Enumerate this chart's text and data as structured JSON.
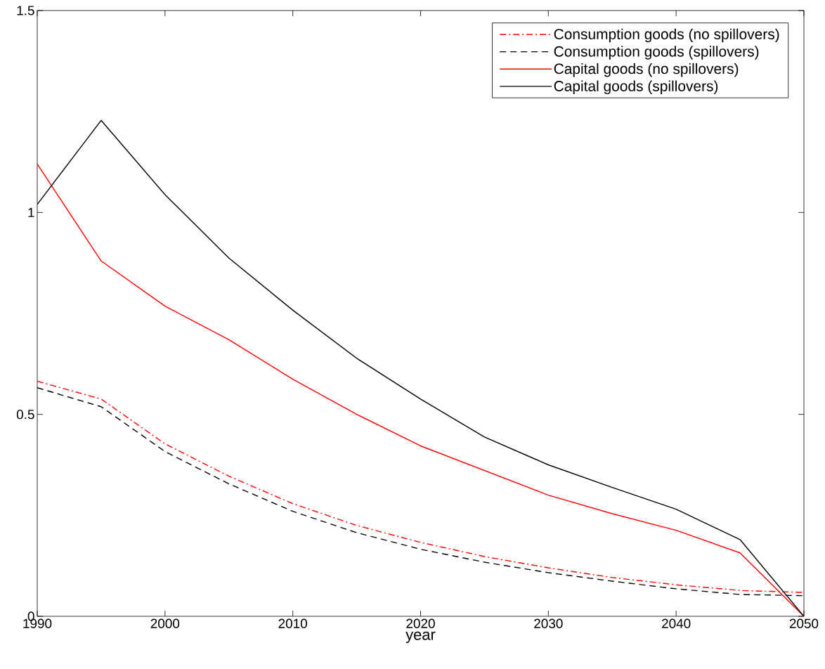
{
  "chart_data": {
    "type": "line",
    "xlabel": "year",
    "x": [
      1990,
      1995,
      2000,
      2005,
      2010,
      2015,
      2020,
      2025,
      2030,
      2035,
      2040,
      2045,
      2050
    ],
    "series": [
      {
        "name": "Consumption goods (no spillovers)",
        "color": "#ff0000",
        "line_style": "dashdot",
        "values": [
          0.582,
          0.538,
          0.427,
          0.347,
          0.279,
          0.225,
          0.183,
          0.148,
          0.12,
          0.096,
          0.078,
          0.064,
          0.059
        ]
      },
      {
        "name": "Consumption goods (spillovers)",
        "color": "#000000",
        "line_style": "dashed",
        "values": [
          0.566,
          0.519,
          0.408,
          0.328,
          0.26,
          0.207,
          0.166,
          0.134,
          0.108,
          0.087,
          0.068,
          0.054,
          0.051
        ]
      },
      {
        "name": "Capital goods (no spillovers)",
        "color": "#ff0000",
        "line_style": "solid",
        "values": [
          1.12,
          0.88,
          0.768,
          0.685,
          0.587,
          0.5,
          0.422,
          0.361,
          0.3,
          0.254,
          0.213,
          0.157,
          0
        ]
      },
      {
        "name": "Capital goods (spillovers)",
        "color": "#000000",
        "line_style": "solid",
        "values": [
          1.02,
          1.228,
          1.044,
          0.887,
          0.758,
          0.639,
          0.538,
          0.444,
          0.375,
          0.319,
          0.265,
          0.19,
          0
        ]
      }
    ],
    "xlim": [
      1990,
      2050
    ],
    "ylim": [
      0,
      1.5
    ],
    "xticks": [
      1990,
      2000,
      2010,
      2020,
      2030,
      2040,
      2050
    ],
    "yticks": [
      0,
      0.5,
      1,
      1.5
    ],
    "legend": "top right",
    "grid": false,
    "marker": "none"
  }
}
